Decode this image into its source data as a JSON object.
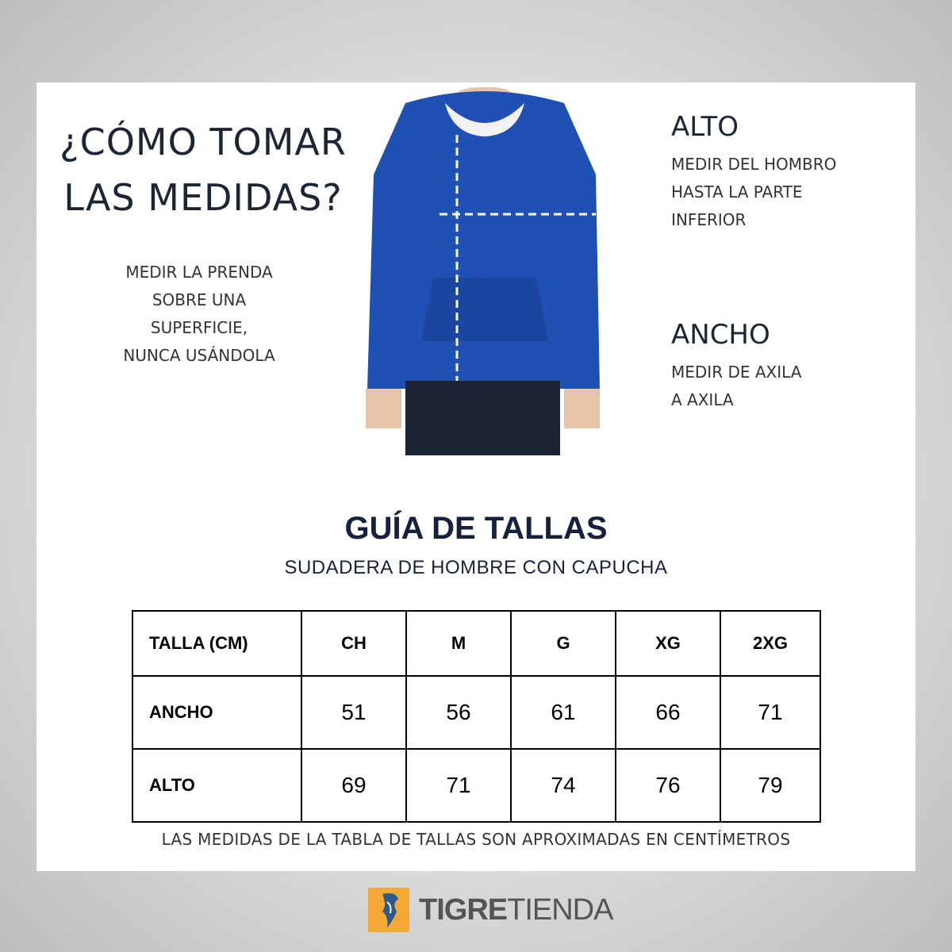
{
  "intro": {
    "title_line1": "¿CÓMO TOMAR",
    "title_line2": "LAS MEDIDAS?",
    "note_lines": [
      "MEDIR LA PRENDA",
      "SOBRE UNA",
      "SUPERFICIE,",
      "NUNCA USÁNDOLA"
    ]
  },
  "alto": {
    "heading": "ALTO",
    "lines": [
      "MEDIR DEL HOMBRO",
      "HASTA LA PARTE",
      "INFERIOR"
    ]
  },
  "ancho": {
    "heading": "ANCHO",
    "lines": [
      "MEDIR DE AXILA",
      "A AXILA"
    ]
  },
  "garment_color": "#1f50b4",
  "guide": {
    "title": "GUÍA DE TALLAS",
    "subtitle": "SUDADERA DE HOMBRE CON CAPUCHA",
    "headers": [
      "TALLA (CM)",
      "CH",
      "M",
      "G",
      "XG",
      "2XG"
    ],
    "rows": [
      {
        "label": "ANCHO",
        "values": [
          "51",
          "56",
          "61",
          "66",
          "71"
        ]
      },
      {
        "label": "ALTO",
        "values": [
          "69",
          "71",
          "74",
          "76",
          "79"
        ]
      }
    ],
    "footnote": "LAS MEDIDAS DE LA TABLA DE TALLAS SON APROXIMADAS EN CENTÍMETROS"
  },
  "logo": {
    "bold": "TIGRE",
    "light": "TIENDA",
    "color": "#f4a934"
  }
}
